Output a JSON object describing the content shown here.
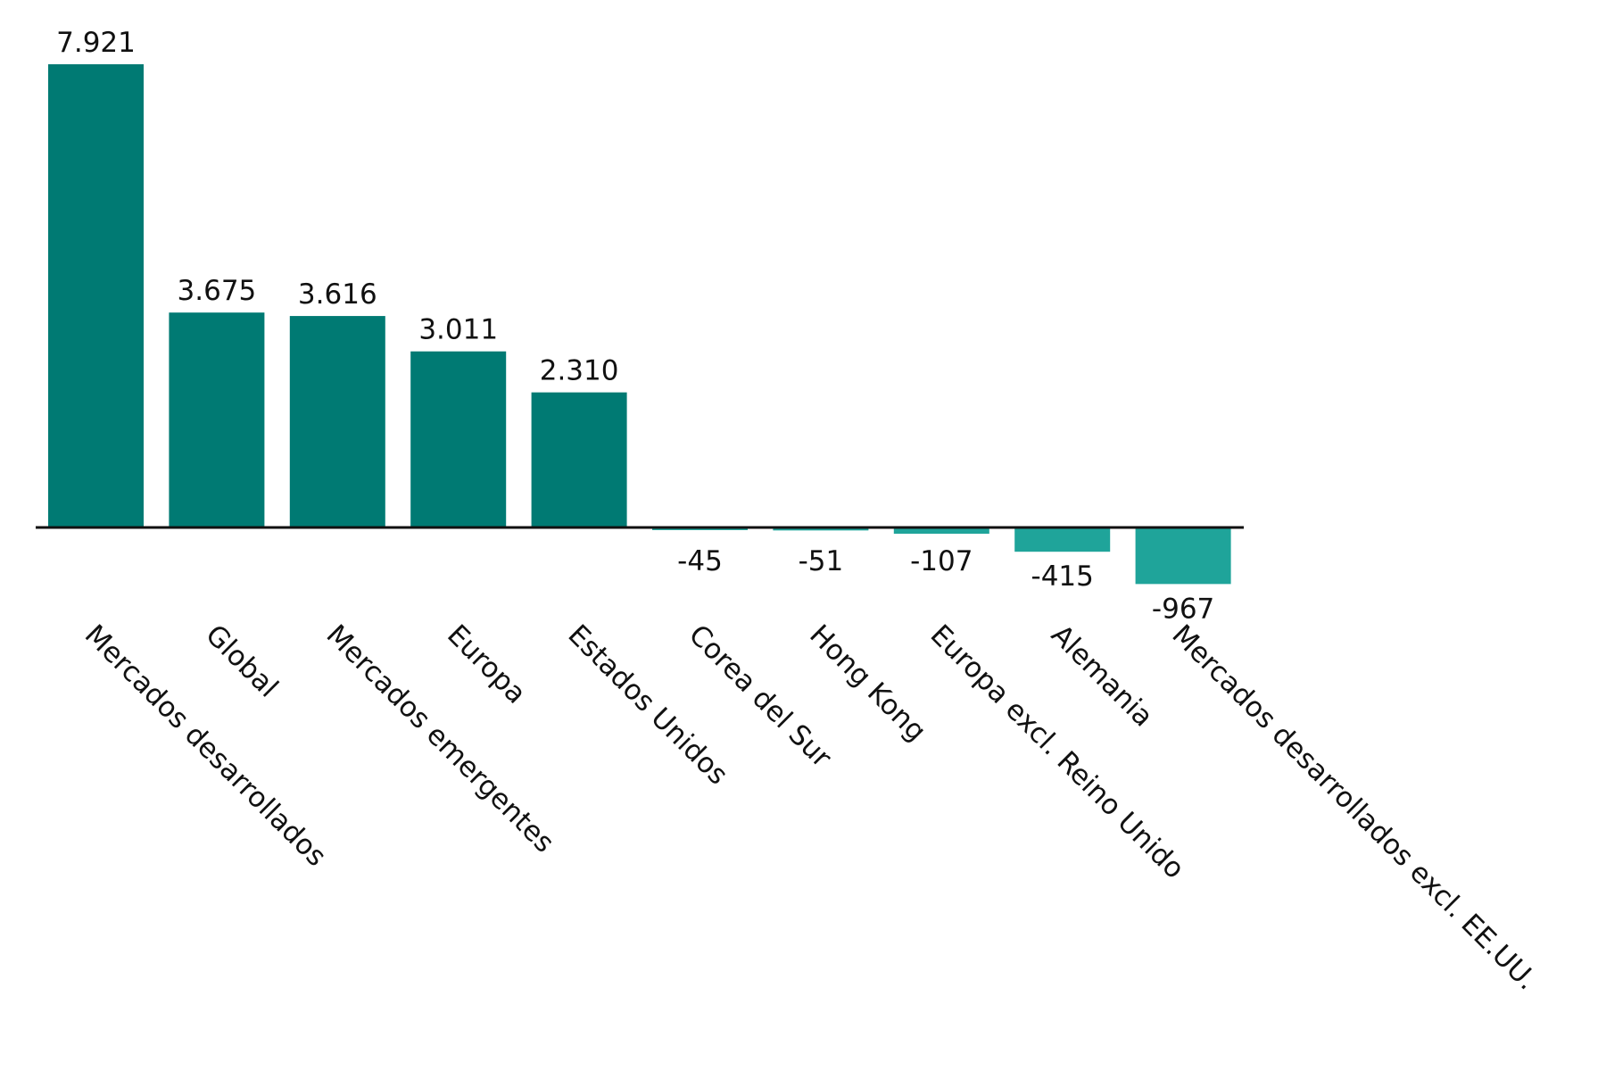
{
  "chart_data": {
    "type": "bar",
    "categories": [
      "Mercados desarrollados",
      "Global",
      "Mercados emergentes",
      "Europa",
      "Estados Unidos",
      "Corea del Sur",
      "Hong Kong",
      "Europa excl. Reino Unido",
      "Alemania",
      "Mercados desarrollados excl. EE.UU."
    ],
    "values": [
      7921,
      3675,
      3616,
      3011,
      2310,
      -45,
      -51,
      -107,
      -415,
      -967
    ],
    "value_labels": [
      "7.921",
      "3.675",
      "3.616",
      "3.011",
      "2.310",
      "-45",
      "-51",
      "-107",
      "-415",
      "-967"
    ],
    "color": "#007a73",
    "negative_color": "#1fa49a"
  }
}
